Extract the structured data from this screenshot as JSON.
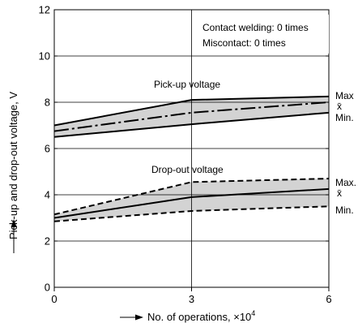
{
  "chart_data": {
    "type": "line",
    "x": [
      0,
      3,
      6
    ],
    "x_ticks": [
      "0",
      "3",
      "6"
    ],
    "y_ticks": [
      "0",
      "2",
      "4",
      "6",
      "8",
      "10",
      "12"
    ],
    "xlim": [
      0,
      6
    ],
    "ylim": [
      0,
      12
    ],
    "grid": true,
    "xlabel": "No. of operations, ×10",
    "xlabel_sup": "4",
    "ylabel": "Pick-up and drop-out voltage, V",
    "annotations": [
      "Contact welding: 0 times",
      "Miscontact: 0 times"
    ],
    "groups": [
      {
        "name": "Pick-up voltage",
        "style": "solid",
        "series": [
          {
            "name": "Max",
            "values": [
              7.0,
              8.1,
              8.25
            ]
          },
          {
            "name": "x̄",
            "values": [
              6.75,
              7.55,
              8.0
            ]
          },
          {
            "name": "Min.",
            "values": [
              6.5,
              7.05,
              7.55
            ]
          }
        ]
      },
      {
        "name": "Drop-out voltage",
        "style": "dashed",
        "series": [
          {
            "name": "Max.",
            "values": [
              3.15,
              4.55,
              4.7
            ]
          },
          {
            "name": "x̄",
            "values": [
              3.0,
              3.9,
              4.25
            ]
          },
          {
            "name": "Min.",
            "values": [
              2.85,
              3.3,
              3.5
            ]
          }
        ]
      }
    ],
    "colors": {
      "line": "#000000",
      "band": "#d3d3d3",
      "grid": "#000000"
    }
  }
}
